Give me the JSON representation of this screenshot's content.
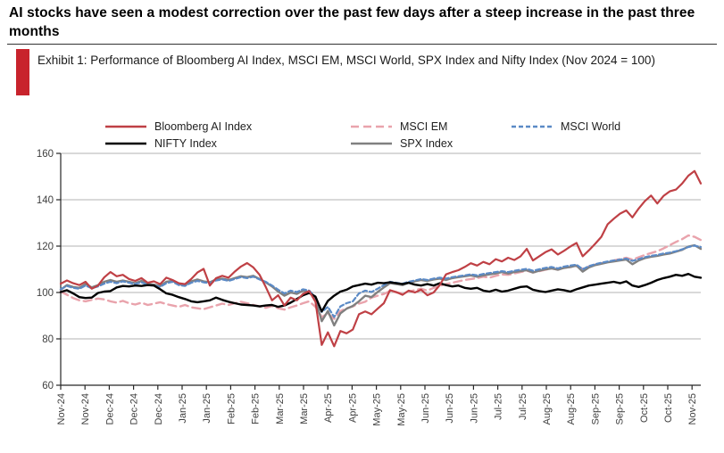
{
  "title": "AI stocks have seen a modest correction over the past few days after a steep increase in the past three months",
  "exhibit": {
    "label": "Exhibit 1: Performance of Bloomberg AI Index, MSCI EM, MSCI World, SPX Index and Nifty Index (Nov 2024 = 100)"
  },
  "colors": {
    "accent_bar": "#c8232c",
    "grid": "#b3b3b3",
    "axis": "#262626",
    "tick_text": "#404040"
  },
  "chart_data": {
    "type": "line",
    "title": "Performance of Bloomberg AI Index, MSCI EM, MSCI World, SPX Index and Nifty Index (Nov 2024 = 100)",
    "xlabel": "",
    "ylabel": "",
    "ylim": [
      60,
      160
    ],
    "yticks": [
      60,
      80,
      100,
      120,
      140,
      160
    ],
    "grid": "horizontal",
    "legend_position": "top",
    "x_tick_labels": [
      "Nov-24",
      "Nov-24",
      "Dec-24",
      "Dec-24",
      "Dec-24",
      "Jan-25",
      "Jan-25",
      "Feb-25",
      "Feb-25",
      "Mar-25",
      "Mar-25",
      "Apr-25",
      "Apr-25",
      "May-25",
      "May-25",
      "Jun-25",
      "Jun-25",
      "Jun-25",
      "Jul-25",
      "Jul-25",
      "Aug-25",
      "Aug-25",
      "Sep-25",
      "Sep-25",
      "Oct-25",
      "Oct-25",
      "Nov-25"
    ],
    "series": [
      {
        "name": "Bloomberg AI Index",
        "color": "#bf4045",
        "style": "solid",
        "values": [
          103.8,
          105.2,
          104.0,
          103.2,
          104.6,
          101.6,
          103.0,
          106.5,
          108.8,
          107.0,
          107.6,
          105.8,
          105.0,
          106.2,
          104.2,
          104.8,
          103.6,
          106.4,
          105.4,
          104.0,
          103.6,
          105.8,
          108.6,
          110.2,
          103.0,
          106.2,
          107.2,
          106.4,
          109.0,
          111.2,
          112.7,
          110.8,
          107.6,
          102.4,
          96.6,
          98.8,
          94.4,
          97.8,
          96.6,
          99.4,
          100.6,
          96.0,
          77.4,
          82.8,
          76.8,
          83.4,
          82.4,
          84.0,
          90.6,
          91.8,
          90.6,
          93.0,
          95.4,
          101.0,
          100.2,
          99.0,
          100.8,
          100.0,
          101.2,
          98.8,
          100.0,
          103.2,
          107.8,
          108.8,
          109.6,
          111.0,
          112.6,
          111.6,
          113.2,
          112.2,
          114.4,
          113.4,
          115.0,
          114.0,
          115.6,
          118.8,
          113.8,
          115.6,
          117.4,
          118.6,
          116.4,
          118.0,
          119.8,
          121.4,
          115.6,
          118.2,
          121.0,
          124.0,
          129.4,
          131.8,
          134.0,
          135.4,
          132.4,
          136.2,
          139.4,
          141.8,
          138.4,
          141.6,
          143.6,
          144.4,
          147.0,
          150.4,
          152.4,
          147.0
        ]
      },
      {
        "name": "MSCI EM",
        "color": "#e9a3ac",
        "style": "dashed",
        "values": [
          100.4,
          99.0,
          97.6,
          96.6,
          96.2,
          96.8,
          97.4,
          97.0,
          96.2,
          95.6,
          96.4,
          95.4,
          94.8,
          95.6,
          94.6,
          95.2,
          95.8,
          95.0,
          94.4,
          93.8,
          94.6,
          93.6,
          93.2,
          92.8,
          93.6,
          94.4,
          95.2,
          94.6,
          95.4,
          96.0,
          95.4,
          94.6,
          94.0,
          93.4,
          94.2,
          93.2,
          92.6,
          93.6,
          94.4,
          95.4,
          96.2,
          93.8,
          89.4,
          91.0,
          88.6,
          92.0,
          93.2,
          94.0,
          95.2,
          96.0,
          97.8,
          98.6,
          99.4,
          100.6,
          100.0,
          99.6,
          100.4,
          101.0,
          101.6,
          100.8,
          102.0,
          102.8,
          103.6,
          104.2,
          104.8,
          105.4,
          105.8,
          106.2,
          106.8,
          106.4,
          107.2,
          107.8,
          107.6,
          108.2,
          108.8,
          109.4,
          108.6,
          109.2,
          109.8,
          110.4,
          109.8,
          110.6,
          111.0,
          111.4,
          110.2,
          111.2,
          112.0,
          112.6,
          113.2,
          113.8,
          114.4,
          115.0,
          114.2,
          115.2,
          116.2,
          117.0,
          117.8,
          119.0,
          120.4,
          121.8,
          123.0,
          124.6,
          124.0,
          122.6
        ]
      },
      {
        "name": "MSCI World",
        "color": "#5b8ac6",
        "style": "dashed",
        "values": [
          101.4,
          102.8,
          102.0,
          101.6,
          103.0,
          101.8,
          102.6,
          103.8,
          104.6,
          104.0,
          104.8,
          104.2,
          103.6,
          104.4,
          103.2,
          103.0,
          102.4,
          104.0,
          104.6,
          103.2,
          102.8,
          104.2,
          105.0,
          104.4,
          104.0,
          105.2,
          105.6,
          105.0,
          105.8,
          106.6,
          106.2,
          106.8,
          105.6,
          104.6,
          103.0,
          101.2,
          99.6,
          100.8,
          100.2,
          101.4,
          100.8,
          98.0,
          91.6,
          93.8,
          89.4,
          94.0,
          95.4,
          96.2,
          99.6,
          100.8,
          100.2,
          101.6,
          103.2,
          104.6,
          104.2,
          103.8,
          104.6,
          105.2,
          105.8,
          105.4,
          106.0,
          106.4,
          106.0,
          106.6,
          107.0,
          107.4,
          107.8,
          107.4,
          108.0,
          108.4,
          108.8,
          109.2,
          108.8,
          109.4,
          109.8,
          110.2,
          109.4,
          110.0,
          110.6,
          111.0,
          110.4,
          111.2,
          111.6,
          112.0,
          110.0,
          111.4,
          112.2,
          112.8,
          113.4,
          113.8,
          114.2,
          114.6,
          113.6,
          114.4,
          115.2,
          115.8,
          116.2,
          116.8,
          117.2,
          117.8,
          118.6,
          119.6,
          120.2,
          119.6
        ]
      },
      {
        "name": "NIFTY Index",
        "color": "#000000",
        "style": "solid",
        "values": [
          100.2,
          101.0,
          99.6,
          98.0,
          97.6,
          97.8,
          99.8,
          100.4,
          100.6,
          102.2,
          102.8,
          102.6,
          103.0,
          102.8,
          103.2,
          103.0,
          101.4,
          99.6,
          99.0,
          98.0,
          97.2,
          96.2,
          95.8,
          96.2,
          96.6,
          97.8,
          96.8,
          96.0,
          95.4,
          94.8,
          94.6,
          94.4,
          94.0,
          94.4,
          94.6,
          93.8,
          94.4,
          95.6,
          97.2,
          98.8,
          99.8,
          98.2,
          91.8,
          96.4,
          98.6,
          100.4,
          101.2,
          102.6,
          103.2,
          103.8,
          103.4,
          104.2,
          104.0,
          104.4,
          104.0,
          103.6,
          104.2,
          103.4,
          103.0,
          103.6,
          103.0,
          104.0,
          103.2,
          102.6,
          103.0,
          102.0,
          101.6,
          102.0,
          100.8,
          100.4,
          101.2,
          100.4,
          100.8,
          101.6,
          102.4,
          102.6,
          101.2,
          100.6,
          100.2,
          100.8,
          101.4,
          101.0,
          100.4,
          101.4,
          102.2,
          103.0,
          103.4,
          103.8,
          104.2,
          104.6,
          104.0,
          104.8,
          103.0,
          102.4,
          103.2,
          104.2,
          105.4,
          106.2,
          106.8,
          107.6,
          107.2,
          108.0,
          106.8,
          106.4
        ]
      },
      {
        "name": "SPX Index",
        "color": "#808080",
        "style": "solid",
        "values": [
          101.2,
          103.2,
          102.4,
          102.0,
          103.6,
          102.2,
          103.2,
          104.6,
          105.4,
          104.6,
          105.2,
          104.6,
          104.0,
          105.0,
          103.6,
          103.4,
          102.8,
          104.6,
          105.0,
          103.6,
          103.2,
          104.8,
          105.6,
          104.8,
          104.4,
          105.6,
          106.0,
          105.4,
          106.2,
          107.0,
          106.6,
          107.2,
          105.8,
          104.4,
          102.6,
          100.4,
          98.6,
          100.0,
          99.4,
          100.8,
          100.2,
          97.0,
          87.6,
          92.0,
          85.8,
          91.0,
          93.0,
          94.2,
          96.2,
          98.6,
          98.0,
          100.2,
          102.2,
          104.0,
          103.6,
          103.2,
          104.2,
          104.8,
          105.4,
          105.0,
          105.6,
          106.0,
          105.4,
          106.2,
          106.6,
          107.0,
          107.4,
          106.8,
          107.4,
          107.8,
          108.2,
          108.8,
          108.2,
          108.8,
          109.2,
          109.6,
          108.6,
          109.4,
          110.0,
          110.4,
          109.8,
          110.6,
          111.0,
          111.6,
          109.0,
          110.8,
          111.8,
          112.4,
          113.0,
          113.4,
          113.8,
          114.2,
          112.2,
          113.8,
          114.8,
          115.4,
          115.8,
          116.4,
          116.8,
          117.6,
          118.4,
          119.8,
          120.4,
          118.8
        ]
      }
    ]
  }
}
